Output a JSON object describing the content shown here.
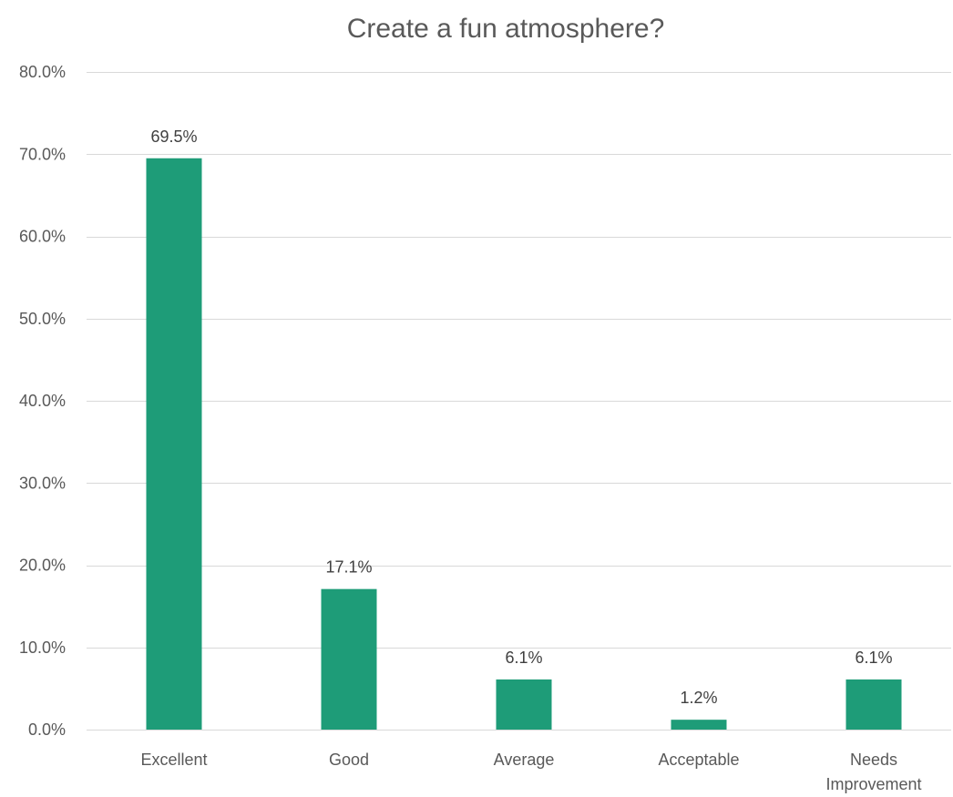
{
  "chart_data": {
    "type": "bar",
    "title": "Create a fun atmosphere?",
    "categories": [
      "Excellent",
      "Good",
      "Average",
      "Acceptable",
      "Needs Improvement"
    ],
    "category_label_lines": [
      [
        "Excellent"
      ],
      [
        "Good"
      ],
      [
        "Average"
      ],
      [
        "Acceptable"
      ],
      [
        "Needs",
        "Improvement"
      ]
    ],
    "values": [
      69.5,
      17.1,
      6.1,
      1.2,
      6.1
    ],
    "data_labels": [
      "69.5%",
      "17.1%",
      "6.1%",
      "1.2%",
      "6.1%"
    ],
    "ylim": [
      0,
      80
    ],
    "y_ticks": [
      0,
      10,
      20,
      30,
      40,
      50,
      60,
      70,
      80
    ],
    "y_tick_labels": [
      "0.0%",
      "10.0%",
      "20.0%",
      "30.0%",
      "40.0%",
      "50.0%",
      "60.0%",
      "70.0%",
      "80.0%"
    ],
    "xlabel": "",
    "ylabel": "",
    "grid": true,
    "legend": "none",
    "bar_color": "#1e9c78"
  }
}
